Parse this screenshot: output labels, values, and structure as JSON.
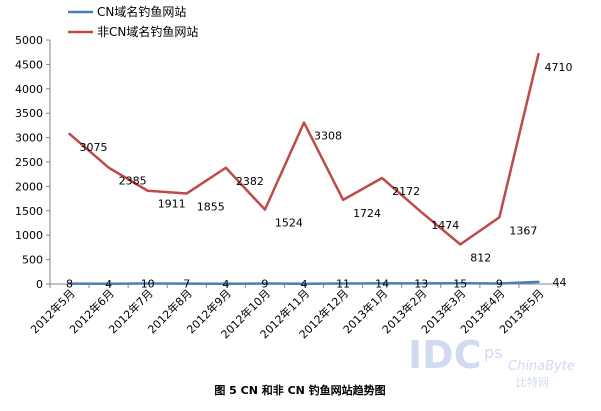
{
  "chart_data": {
    "type": "line",
    "title": "",
    "xlabel": "",
    "ylabel": "",
    "ylim": [
      0,
      5000
    ],
    "yticks": [
      0,
      500,
      1000,
      1500,
      2000,
      2500,
      3000,
      3500,
      4000,
      4500,
      5000
    ],
    "grid": false,
    "legend_position": "top-left",
    "categories": [
      "2012年5月",
      "2012年6月",
      "2012年7月",
      "2012年8月",
      "2012年9月",
      "2012年10月",
      "2012年11月",
      "2012年12月",
      "2013年1月",
      "2013年2月",
      "2013年3月",
      "2013年4月",
      "2013年5月"
    ],
    "series": [
      {
        "name": "CN域名钓鱼网站",
        "color": "#4a7ebb",
        "values": [
          8,
          4,
          10,
          7,
          4,
          9,
          4,
          11,
          14,
          13,
          15,
          9,
          44
        ]
      },
      {
        "name": "非CN域名钓鱼网站",
        "color": "#be4b48",
        "values": [
          3075,
          2385,
          1911,
          1855,
          2382,
          1524,
          3308,
          1724,
          2172,
          1474,
          812,
          1367,
          4710
        ]
      }
    ]
  },
  "caption": "图 5 CN 和非 CN 钓鱼网站趋势图",
  "watermark": {
    "logo_text": "IDC",
    "logo_sup": "ps",
    "site_text": "ChinaByte",
    "site_cn": "比特网"
  }
}
